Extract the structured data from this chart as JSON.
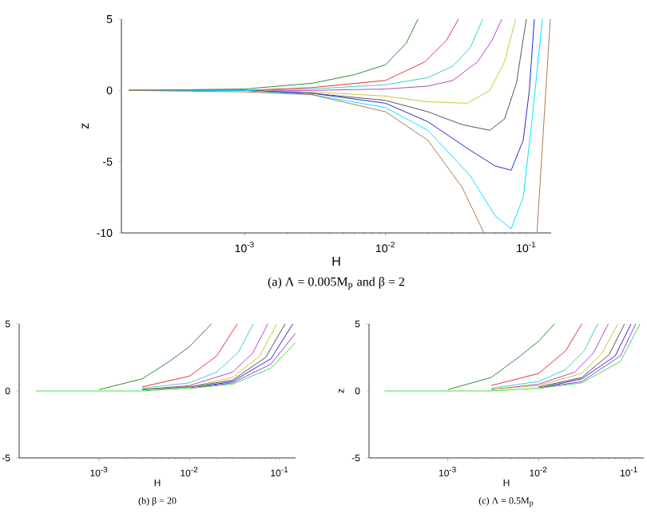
{
  "chart_data": [
    {
      "type": "line",
      "title": "(a) Λ = 0.005M$_{p}$ and β = 2",
      "xlabel": "H",
      "ylabel": "z",
      "log": "x",
      "xlim": [
        0.000133,
        0.15
      ],
      "ylim": [
        -10,
        5
      ],
      "xticks": [
        {
          "value": 0.001,
          "label": "10$^{-3}$"
        },
        {
          "value": 0.01,
          "label": "10$^{-2}$"
        },
        {
          "value": 0.1,
          "label": "10$^{-1}$"
        }
      ],
      "yticks": [
        -10,
        -5,
        0,
        5
      ],
      "series": [
        {
          "color": "#2e8b3a",
          "x": [
            0.00015,
            0.001,
            0.003,
            0.006,
            0.01,
            0.014,
            0.017
          ],
          "values": [
            0,
            0.1,
            0.5,
            1.1,
            1.8,
            3.3,
            5
          ]
        },
        {
          "color": "#e8333a",
          "x": [
            0.00015,
            0.001,
            0.003,
            0.01,
            0.019,
            0.027,
            0.033
          ],
          "values": [
            0,
            0,
            0.2,
            0.7,
            2.0,
            3.5,
            5
          ]
        },
        {
          "color": "#40d0c0",
          "x": [
            0.00015,
            0.001,
            0.003,
            0.01,
            0.02,
            0.03,
            0.04,
            0.049
          ],
          "values": [
            0,
            0,
            0.1,
            0.4,
            0.9,
            1.7,
            3.0,
            5
          ]
        },
        {
          "color": "#c040d0",
          "x": [
            0.00015,
            0.001,
            0.003,
            0.01,
            0.02,
            0.03,
            0.045,
            0.057,
            0.067
          ],
          "values": [
            0,
            0,
            0,
            0.1,
            0.3,
            0.7,
            2.0,
            3.5,
            5
          ]
        },
        {
          "color": "#c8c83a",
          "x": [
            0.00015,
            0.001,
            0.003,
            0.01,
            0.02,
            0.038,
            0.055,
            0.07,
            0.084
          ],
          "values": [
            0,
            0,
            -0.1,
            -0.4,
            -0.8,
            -0.9,
            0,
            2.0,
            5
          ]
        },
        {
          "color": "#555555",
          "x": [
            0.00015,
            0.001,
            0.003,
            0.01,
            0.02,
            0.035,
            0.055,
            0.07,
            0.085,
            0.1
          ],
          "values": [
            0,
            0,
            -0.2,
            -0.7,
            -1.5,
            -2.4,
            -2.8,
            -2.0,
            0.5,
            5
          ]
        },
        {
          "color": "#2828d0",
          "x": [
            0.00015,
            0.001,
            0.003,
            0.01,
            0.02,
            0.04,
            0.06,
            0.078,
            0.095,
            0.105,
            0.114
          ],
          "values": [
            0,
            0,
            -0.2,
            -0.9,
            -2.2,
            -4.2,
            -5.3,
            -5.6,
            -3.5,
            0,
            5
          ]
        },
        {
          "color": "#00e8ff",
          "x": [
            0.00015,
            0.001,
            0.003,
            0.01,
            0.02,
            0.04,
            0.06,
            0.078,
            0.095,
            0.11,
            0.13
          ],
          "values": [
            0,
            0,
            -0.3,
            -1.2,
            -2.8,
            -6.0,
            -8.8,
            -9.7,
            -7.5,
            -2,
            5
          ]
        },
        {
          "color": "#b07850",
          "x": [
            0.00015,
            0.001,
            0.003,
            0.01,
            0.02,
            0.035,
            0.05,
            0.08,
            0.119,
            0.148
          ],
          "values": [
            0,
            -0.1,
            -0.3,
            -1.5,
            -3.5,
            -6.8,
            -10,
            null,
            -10,
            5
          ]
        }
      ]
    },
    {
      "type": "line",
      "title": "(b) β = 20",
      "xlabel": "H",
      "log": "x",
      "xlim": [
        0.00013,
        0.15
      ],
      "ylim": [
        -5,
        5
      ],
      "xticks": [
        {
          "value": 0.001,
          "label": "10$^{-3}$"
        },
        {
          "value": 0.01,
          "label": "10$^{-2}$"
        },
        {
          "value": 0.1,
          "label": "10$^{-1}$"
        }
      ],
      "yticks": [
        -5,
        0,
        5
      ],
      "series": [
        {
          "color": "#2e8b3a",
          "x": [
            0.001,
            0.003,
            0.006,
            0.01,
            0.0175
          ],
          "values": [
            0.1,
            0.9,
            2.2,
            3.3,
            5
          ]
        },
        {
          "color": "#e8333a",
          "x": [
            0.003,
            0.01,
            0.02,
            0.034
          ],
          "values": [
            0.3,
            1.1,
            2.6,
            5
          ]
        },
        {
          "color": "#40d0c0",
          "x": [
            0.003,
            0.01,
            0.02,
            0.035,
            0.051
          ],
          "values": [
            0.2,
            0.6,
            1.4,
            2.9,
            5
          ]
        },
        {
          "color": "#c040d0",
          "x": [
            0.003,
            0.01,
            0.03,
            0.05,
            0.074
          ],
          "values": [
            0.1,
            0.4,
            1.4,
            2.8,
            5
          ]
        },
        {
          "color": "#c8c83a",
          "x": [
            0.003,
            0.01,
            0.03,
            0.06,
            0.093
          ],
          "values": [
            0.1,
            0.3,
            1.0,
            2.6,
            5
          ]
        },
        {
          "color": "#555555",
          "x": [
            0.003,
            0.01,
            0.03,
            0.07,
            0.115
          ],
          "values": [
            0.1,
            0.3,
            0.8,
            2.5,
            5
          ]
        },
        {
          "color": "#2828d0",
          "x": [
            0.01,
            0.03,
            0.08,
            0.14
          ],
          "values": [
            0.2,
            0.7,
            2.4,
            5
          ]
        },
        {
          "color": "#9a3ae8",
          "x": [
            0.01,
            0.03,
            0.08,
            0.15
          ],
          "values": [
            0.2,
            0.6,
            2.0,
            4.3
          ]
        },
        {
          "color": "#40e040",
          "x": [
            0.0002,
            0.003,
            0.01,
            0.03,
            0.08,
            0.15
          ],
          "values": [
            0,
            0,
            0.2,
            0.5,
            1.7,
            3.6
          ]
        }
      ]
    },
    {
      "type": "line",
      "title": "(c) Λ = 0.5M$_{p}$",
      "xlabel": "H",
      "ylabel": "z",
      "log": "x",
      "xlim": [
        0.000135,
        0.145
      ],
      "ylim": [
        -5,
        5
      ],
      "xticks": [
        {
          "value": 0.001,
          "label": "10$^{-3}$"
        },
        {
          "value": 0.01,
          "label": "10$^{-2}$"
        },
        {
          "value": 0.1,
          "label": "10$^{-1}$"
        }
      ],
      "yticks": [
        -5,
        0,
        5
      ],
      "series": [
        {
          "color": "#2e8b3a",
          "x": [
            0.001,
            0.003,
            0.006,
            0.01,
            0.015
          ],
          "values": [
            0.1,
            1.0,
            2.5,
            3.7,
            5
          ]
        },
        {
          "color": "#e8333a",
          "x": [
            0.003,
            0.01,
            0.02,
            0.03
          ],
          "values": [
            0.4,
            1.3,
            3.0,
            5
          ]
        },
        {
          "color": "#40d0c0",
          "x": [
            0.003,
            0.01,
            0.02,
            0.032,
            0.045
          ],
          "values": [
            0.2,
            0.7,
            1.6,
            3.0,
            5
          ]
        },
        {
          "color": "#c040d0",
          "x": [
            0.003,
            0.01,
            0.025,
            0.04,
            0.059
          ],
          "values": [
            0.1,
            0.5,
            1.4,
            2.8,
            5
          ]
        },
        {
          "color": "#c8c83a",
          "x": [
            0.003,
            0.01,
            0.03,
            0.05,
            0.075
          ],
          "values": [
            0.1,
            0.4,
            1.3,
            2.8,
            5
          ]
        },
        {
          "color": "#555555",
          "x": [
            0.01,
            0.03,
            0.06,
            0.089
          ],
          "values": [
            0.3,
            1.0,
            2.7,
            5
          ]
        },
        {
          "color": "#2828d0",
          "x": [
            0.01,
            0.03,
            0.07,
            0.105
          ],
          "values": [
            0.2,
            0.9,
            2.6,
            5
          ]
        },
        {
          "color": "#9a3ae8",
          "x": [
            0.01,
            0.03,
            0.08,
            0.118
          ],
          "values": [
            0.2,
            0.7,
            2.6,
            5
          ]
        },
        {
          "color": "#40e040",
          "x": [
            0.0002,
            0.003,
            0.01,
            0.03,
            0.08,
            0.132
          ],
          "values": [
            0,
            0,
            0.2,
            0.6,
            2.2,
            5
          ]
        }
      ]
    }
  ]
}
